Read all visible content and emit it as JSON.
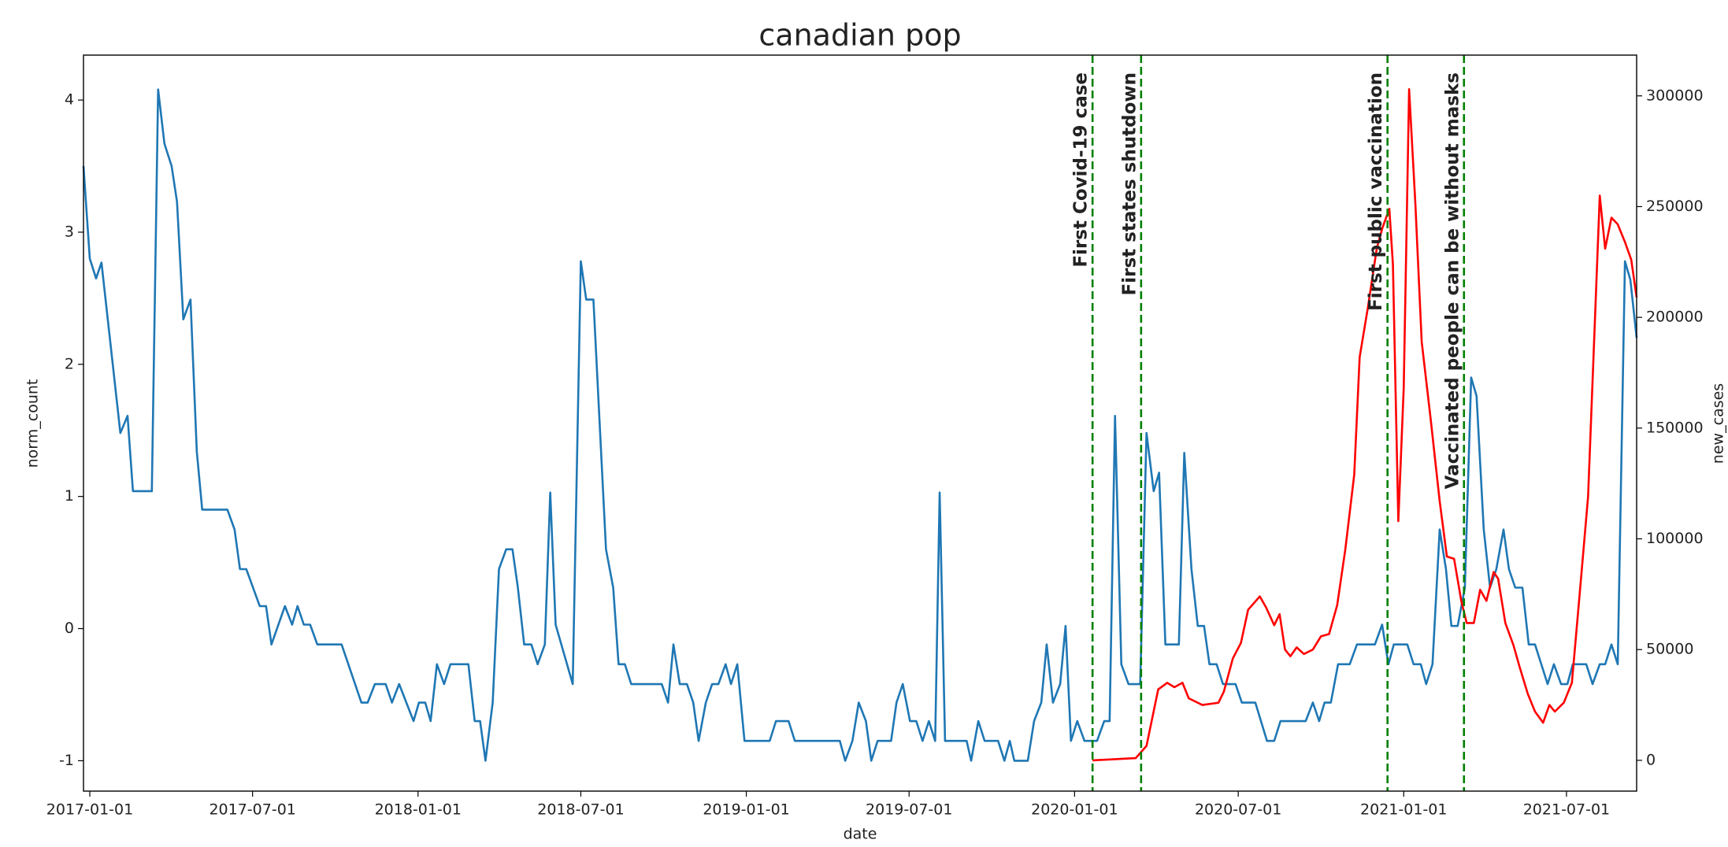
{
  "chart_data": {
    "type": "line",
    "title": "canadian pop",
    "xlabel": "date",
    "ylabel": "norm_count",
    "y2label": "new_cases",
    "xlim": [
      "2016-12-25",
      "2021-09-17"
    ],
    "xticks": [
      "2017-01-01",
      "2017-07-01",
      "2018-01-01",
      "2018-07-01",
      "2019-01-01",
      "2019-07-01",
      "2020-01-01",
      "2020-07-01",
      "2021-01-01",
      "2021-07-01"
    ],
    "ylim": [
      -1.23,
      4.34
    ],
    "yticks": [
      -1,
      0,
      1,
      2,
      3,
      4
    ],
    "y2lim": [
      -13900,
      318400
    ],
    "y2ticks": [
      0,
      50000,
      100000,
      150000,
      200000,
      250000,
      300000
    ],
    "series": [
      {
        "color": "#1f77b4",
        "axis": "y",
        "x": [
          "2016-12-25",
          "2017-01-01",
          "2017-01-08",
          "2017-01-14",
          "2017-02-04",
          "2017-02-12",
          "2017-02-18",
          "2017-03-11",
          "2017-03-18",
          "2017-03-25",
          "2017-04-02",
          "2017-04-08",
          "2017-04-15",
          "2017-04-23",
          "2017-04-30",
          "2017-05-06",
          "2017-06-03",
          "2017-06-11",
          "2017-06-17",
          "2017-06-24",
          "2017-07-09",
          "2017-07-16",
          "2017-07-22",
          "2017-08-06",
          "2017-08-14",
          "2017-08-20",
          "2017-08-27",
          "2017-09-03",
          "2017-09-11",
          "2017-10-08",
          "2017-10-30",
          "2017-11-06",
          "2017-11-14",
          "2017-11-26",
          "2017-12-03",
          "2017-12-11",
          "2017-12-27",
          "2018-01-02",
          "2018-01-09",
          "2018-01-15",
          "2018-01-22",
          "2018-01-30",
          "2018-02-06",
          "2018-02-26",
          "2018-03-05",
          "2018-03-11",
          "2018-03-17",
          "2018-03-25",
          "2018-04-01",
          "2018-04-09",
          "2018-04-16",
          "2018-04-22",
          "2018-04-29",
          "2018-05-07",
          "2018-05-14",
          "2018-05-22",
          "2018-05-28",
          "2018-06-03",
          "2018-06-22",
          "2018-07-01",
          "2018-07-07",
          "2018-07-15",
          "2018-07-29",
          "2018-08-06",
          "2018-08-12",
          "2018-08-19",
          "2018-08-26",
          "2018-09-29",
          "2018-10-06",
          "2018-10-12",
          "2018-10-19",
          "2018-10-27",
          "2018-11-03",
          "2018-11-09",
          "2018-11-17",
          "2018-11-24",
          "2018-12-01",
          "2018-12-09",
          "2018-12-15",
          "2018-12-22",
          "2018-12-30",
          "2019-01-27",
          "2019-02-03",
          "2019-02-17",
          "2019-02-24",
          "2019-04-15",
          "2019-04-21",
          "2019-04-29",
          "2019-05-06",
          "2019-05-14",
          "2019-05-20",
          "2019-05-27",
          "2019-06-11",
          "2019-06-17",
          "2019-06-24",
          "2019-07-02",
          "2019-07-09",
          "2019-07-16",
          "2019-07-23",
          "2019-07-30",
          "2019-08-04",
          "2019-08-10",
          "2019-09-03",
          "2019-09-08",
          "2019-09-16",
          "2019-09-23",
          "2019-10-08",
          "2019-10-15",
          "2019-10-21",
          "2019-10-26",
          "2019-11-10",
          "2019-11-17",
          "2019-11-25",
          "2019-12-01",
          "2019-12-08",
          "2019-12-16",
          "2019-12-22",
          "2019-12-28",
          "2020-01-04",
          "2020-01-12",
          "2020-01-26",
          "2020-02-03",
          "2020-02-09",
          "2020-02-15",
          "2020-02-22",
          "2020-03-01",
          "2020-03-14",
          "2020-03-21",
          "2020-03-29",
          "2020-04-04",
          "2020-04-11",
          "2020-04-26",
          "2020-05-02",
          "2020-05-10",
          "2020-05-17",
          "2020-05-24",
          "2020-05-30",
          "2020-06-07",
          "2020-06-14",
          "2020-06-28",
          "2020-07-05",
          "2020-07-20",
          "2020-08-02",
          "2020-08-10",
          "2020-08-17",
          "2020-09-14",
          "2020-09-22",
          "2020-09-29",
          "2020-10-05",
          "2020-10-12",
          "2020-10-20",
          "2020-11-02",
          "2020-11-10",
          "2020-11-30",
          "2020-12-08",
          "2020-12-15",
          "2020-12-21",
          "2021-01-05",
          "2021-01-12",
          "2021-01-20",
          "2021-01-26",
          "2021-02-02",
          "2021-02-10",
          "2021-02-17",
          "2021-02-23",
          "2021-03-02",
          "2021-03-10",
          "2021-03-17",
          "2021-03-23",
          "2021-03-31",
          "2021-04-07",
          "2021-04-14",
          "2021-04-22",
          "2021-04-28",
          "2021-05-05",
          "2021-05-13",
          "2021-05-20",
          "2021-05-27",
          "2021-06-03",
          "2021-06-10",
          "2021-06-17",
          "2021-06-25",
          "2021-07-02",
          "2021-07-08",
          "2021-07-23",
          "2021-07-30",
          "2021-08-07",
          "2021-08-13",
          "2021-08-20",
          "2021-08-27",
          "2021-09-04",
          "2021-09-10",
          "2021-09-17"
        ],
        "values": [
          3.5,
          2.8,
          2.65,
          2.77,
          1.48,
          1.61,
          1.04,
          1.04,
          4.08,
          3.67,
          3.5,
          3.23,
          2.34,
          2.49,
          1.34,
          0.9,
          0.9,
          0.75,
          0.45,
          0.45,
          0.17,
          0.17,
          -0.12,
          0.17,
          0.03,
          0.17,
          0.03,
          0.03,
          -0.12,
          -0.12,
          -0.56,
          -0.56,
          -0.42,
          -0.42,
          -0.56,
          -0.42,
          -0.7,
          -0.56,
          -0.56,
          -0.7,
          -0.27,
          -0.42,
          -0.27,
          -0.27,
          -0.7,
          -0.7,
          -1.0,
          -0.56,
          0.45,
          0.6,
          0.6,
          0.31,
          -0.12,
          -0.12,
          -0.27,
          -0.12,
          1.03,
          0.03,
          -0.42,
          2.78,
          2.49,
          2.49,
          0.6,
          0.31,
          -0.27,
          -0.27,
          -0.42,
          -0.42,
          -0.56,
          -0.12,
          -0.42,
          -0.42,
          -0.56,
          -0.85,
          -0.56,
          -0.42,
          -0.42,
          -0.27,
          -0.42,
          -0.27,
          -0.85,
          -0.85,
          -0.7,
          -0.7,
          -0.85,
          -0.85,
          -1.0,
          -0.85,
          -0.56,
          -0.7,
          -1.0,
          -0.85,
          -0.85,
          -0.56,
          -0.42,
          -0.7,
          -0.7,
          -0.85,
          -0.7,
          -0.85,
          1.03,
          -0.85,
          -0.85,
          -1.0,
          -0.7,
          -0.85,
          -0.85,
          -1.0,
          -0.85,
          -1.0,
          -1.0,
          -0.7,
          -0.56,
          -0.12,
          -0.56,
          -0.42,
          0.02,
          -0.85,
          -0.7,
          -0.85,
          -0.85,
          -0.7,
          -0.7,
          1.61,
          -0.27,
          -0.42,
          -0.42,
          1.48,
          1.04,
          1.18,
          -0.12,
          -0.12,
          1.33,
          0.45,
          0.02,
          0.02,
          -0.27,
          -0.27,
          -0.42,
          -0.42,
          -0.56,
          -0.56,
          -0.85,
          -0.85,
          -0.7,
          -0.7,
          -0.56,
          -0.7,
          -0.56,
          -0.56,
          -0.27,
          -0.27,
          -0.12,
          -0.12,
          0.03,
          -0.27,
          -0.12,
          -0.12,
          -0.27,
          -0.27,
          -0.42,
          -0.27,
          0.75,
          0.45,
          0.02,
          0.02,
          0.31,
          1.9,
          1.76,
          0.75,
          0.31,
          0.45,
          0.75,
          0.45,
          0.31,
          0.31,
          -0.12,
          -0.12,
          -0.27,
          -0.42,
          -0.27,
          -0.42,
          -0.42,
          -0.27,
          -0.27,
          -0.42,
          -0.27,
          -0.27,
          -0.12,
          -0.27,
          2.78,
          2.64,
          2.2
        ]
      },
      {
        "color": "#ff0000",
        "axis": "y2",
        "x": [
          "2020-01-21",
          "2020-03-09",
          "2020-03-21",
          "2020-04-03",
          "2020-04-13",
          "2020-04-21",
          "2020-04-30",
          "2020-05-07",
          "2020-05-22",
          "2020-06-09",
          "2020-06-15",
          "2020-06-25",
          "2020-07-04",
          "2020-07-12",
          "2020-07-25",
          "2020-08-01",
          "2020-08-10",
          "2020-08-16",
          "2020-08-22",
          "2020-08-28",
          "2020-09-04",
          "2020-09-12",
          "2020-09-22",
          "2020-10-01",
          "2020-10-10",
          "2020-10-19",
          "2020-10-28",
          "2020-11-07",
          "2020-11-13",
          "2020-11-22",
          "2020-12-02",
          "2020-12-08",
          "2020-12-16",
          "2020-12-20",
          "2020-12-26",
          "2021-01-01",
          "2021-01-07",
          "2021-01-14",
          "2021-01-21",
          "2021-01-31",
          "2021-02-10",
          "2021-02-18",
          "2021-02-26",
          "2021-03-06",
          "2021-03-12",
          "2021-03-20",
          "2021-03-27",
          "2021-04-03",
          "2021-04-11",
          "2021-04-16",
          "2021-04-24",
          "2021-05-03",
          "2021-05-10",
          "2021-05-19",
          "2021-05-27",
          "2021-06-05",
          "2021-06-12",
          "2021-06-18",
          "2021-06-28",
          "2021-07-07",
          "2021-07-15",
          "2021-07-25",
          "2021-08-07",
          "2021-08-13",
          "2021-08-20",
          "2021-08-27",
          "2021-09-04",
          "2021-09-11",
          "2021-09-17"
        ],
        "values": [
          0,
          1000,
          6500,
          32000,
          35000,
          33000,
          35000,
          28000,
          25000,
          26000,
          31000,
          46000,
          53000,
          68000,
          74000,
          69000,
          61000,
          66000,
          50000,
          47000,
          51000,
          48000,
          50000,
          56000,
          57000,
          70000,
          95000,
          129000,
          182000,
          204000,
          231000,
          240000,
          249000,
          224000,
          108000,
          168000,
          303000,
          251000,
          189000,
          154000,
          117000,
          92000,
          91000,
          72000,
          62000,
          62000,
          77000,
          72000,
          85000,
          82000,
          62000,
          52000,
          42000,
          30000,
          22000,
          17000,
          25000,
          22000,
          26000,
          35000,
          72000,
          119000,
          255000,
          231000,
          245000,
          242000,
          234000,
          226000,
          209000
        ]
      }
    ],
    "annotations": [
      {
        "x": "2020-01-21",
        "label": "First Covid-19 case",
        "color": "#008000"
      },
      {
        "x": "2020-03-15",
        "label": "First states shutdown",
        "color": "#008000"
      },
      {
        "x": "2020-12-14",
        "label": "First public vaccination",
        "color": "#008000"
      },
      {
        "x": "2021-03-09",
        "label": "Vaccinated people can be without masks",
        "color": "#008000"
      }
    ]
  }
}
